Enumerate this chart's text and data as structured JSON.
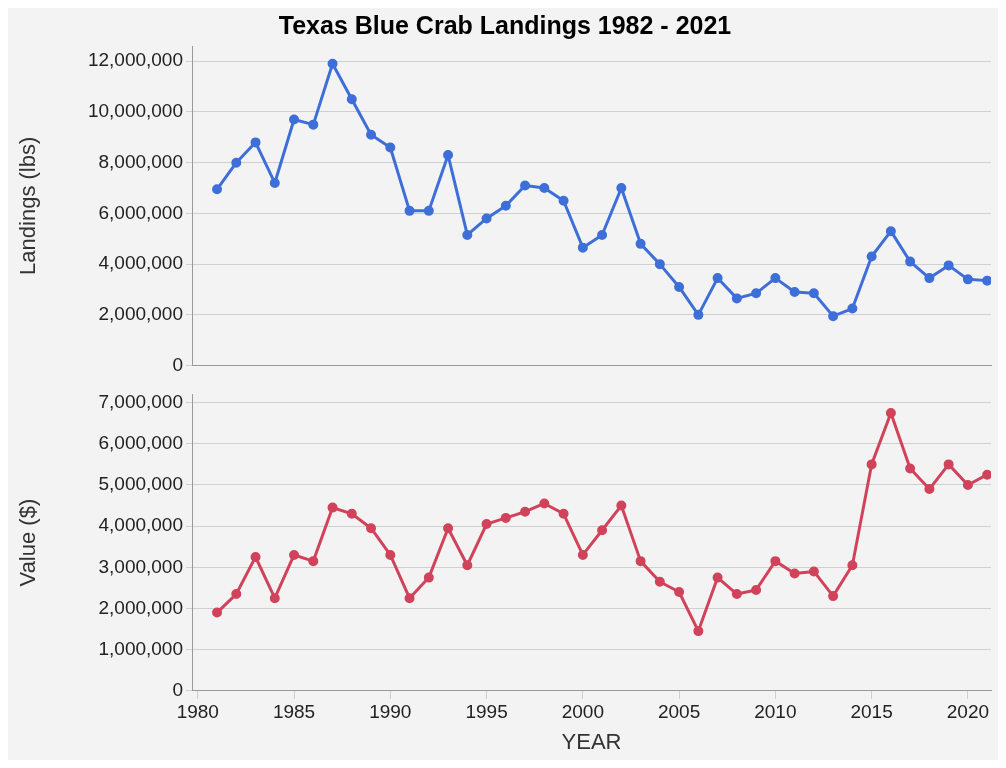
{
  "chart_data": [
    {
      "type": "line",
      "title": "Texas Blue Crab Landings 1982 - 2021",
      "ylabel": "Landings (lbs)",
      "x": [
        1981,
        1982,
        1983,
        1984,
        1985,
        1986,
        1987,
        1988,
        1989,
        1990,
        1991,
        1992,
        1993,
        1994,
        1995,
        1996,
        1997,
        1998,
        1999,
        2000,
        2001,
        2002,
        2003,
        2004,
        2005,
        2006,
        2007,
        2008,
        2009,
        2010,
        2011,
        2012,
        2013,
        2014,
        2015,
        2016,
        2017,
        2018,
        2019,
        2020,
        2021
      ],
      "series": [
        {
          "color": "#3e6fd8",
          "values": [
            6950000,
            8000000,
            8800000,
            7200000,
            9700000,
            9500000,
            11900000,
            10500000,
            9100000,
            8600000,
            6100000,
            6100000,
            8300000,
            5150000,
            5800000,
            6300000,
            7100000,
            7000000,
            6500000,
            4650000,
            5150000,
            7000000,
            4800000,
            4000000,
            3100000,
            2000000,
            3450000,
            2650000,
            2850000,
            3450000,
            2900000,
            2850000,
            1950000,
            2250000,
            4300000,
            5300000,
            4100000,
            3450000,
            3950000,
            3400000,
            3350000
          ]
        }
      ],
      "xlim": [
        1979.7,
        2021.2
      ],
      "ylim": [
        0,
        12600000
      ],
      "yticks": [
        {
          "value": 0,
          "label": "0"
        },
        {
          "value": 2000000,
          "label": "2,000,000"
        },
        {
          "value": 4000000,
          "label": "4,000,000"
        },
        {
          "value": 6000000,
          "label": "6,000,000"
        },
        {
          "value": 8000000,
          "label": "8,000,000"
        },
        {
          "value": 10000000,
          "label": "10,000,000"
        },
        {
          "value": 12000000,
          "label": "12,000,000"
        }
      ],
      "tick_labels": "y",
      "grid": "y",
      "marker": "circle",
      "line_style": "solid",
      "legend": false
    },
    {
      "type": "line",
      "xlabel": "YEAR",
      "ylabel": "Value ($)",
      "x": [
        1981,
        1982,
        1983,
        1984,
        1985,
        1986,
        1987,
        1988,
        1989,
        1990,
        1991,
        1992,
        1993,
        1994,
        1995,
        1996,
        1997,
        1998,
        1999,
        2000,
        2001,
        2002,
        2003,
        2004,
        2005,
        2006,
        2007,
        2008,
        2009,
        2010,
        2011,
        2012,
        2013,
        2014,
        2015,
        2016,
        2017,
        2018,
        2019,
        2020,
        2021
      ],
      "series": [
        {
          "color": "#d0435b",
          "values": [
            1900000,
            2350000,
            3250000,
            2250000,
            3300000,
            3150000,
            4450000,
            4300000,
            3950000,
            3300000,
            2250000,
            2750000,
            3950000,
            3050000,
            4050000,
            4200000,
            4350000,
            4550000,
            4300000,
            3300000,
            3900000,
            4500000,
            3150000,
            2650000,
            2400000,
            1450000,
            2750000,
            2350000,
            2450000,
            3150000,
            2850000,
            2900000,
            2300000,
            3050000,
            5500000,
            6750000,
            5400000,
            4900000,
            5500000,
            5000000,
            5250000
          ]
        }
      ],
      "xlim": [
        1979.7,
        2021.2
      ],
      "xticks": [
        1980,
        1985,
        1990,
        1995,
        2000,
        2005,
        2010,
        2015,
        2020
      ],
      "ylim": [
        0,
        7200000
      ],
      "yticks": [
        {
          "value": 0,
          "label": "0"
        },
        {
          "value": 1000000,
          "label": "1,000,000"
        },
        {
          "value": 2000000,
          "label": "2,000,000"
        },
        {
          "value": 3000000,
          "label": "3,000,000"
        },
        {
          "value": 4000000,
          "label": "4,000,000"
        },
        {
          "value": 5000000,
          "label": "5,000,000"
        },
        {
          "value": 6000000,
          "label": "6,000,000"
        },
        {
          "value": 7000000,
          "label": "7,000,000"
        }
      ],
      "grid": "y",
      "marker": "circle",
      "line_style": "solid",
      "legend": false
    }
  ]
}
